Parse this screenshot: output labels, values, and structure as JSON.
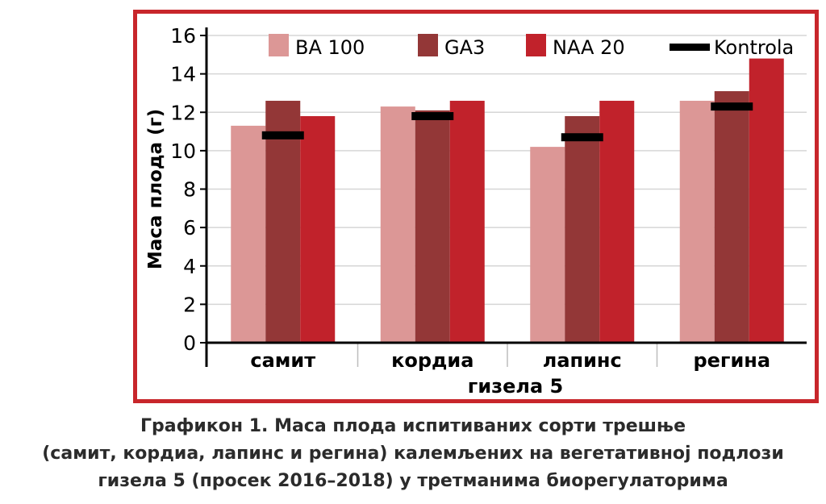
{
  "chart_data": {
    "type": "bar",
    "categories": [
      "самит",
      "кордиа",
      "лапинс",
      "регина"
    ],
    "group_label": "гизела 5",
    "ylabel": "Маса плода (г)",
    "ylim": [
      0,
      16
    ],
    "yticks": [
      0,
      2,
      4,
      6,
      8,
      10,
      12,
      14,
      16
    ],
    "series": [
      {
        "name": "BA 100",
        "color": "#dc9796",
        "values": [
          11.3,
          12.3,
          10.2,
          12.6
        ]
      },
      {
        "name": "GA3",
        "color": "#933737",
        "values": [
          12.6,
          12.1,
          11.8,
          13.1
        ]
      },
      {
        "name": "NAA 20",
        "color": "#c1222b",
        "values": [
          11.8,
          12.6,
          12.6,
          14.8
        ]
      }
    ],
    "control": {
      "name": "Kontrola",
      "color": "#000000",
      "values": [
        10.8,
        11.8,
        10.7,
        12.3
      ]
    },
    "legend_position": "top",
    "grid": true
  },
  "caption": {
    "line1": "Графикон 1. Маса плода испитиваних сорти трешње",
    "line2": "(самит, кордиа, лапинс и регина) калемљених на вегетативној подлози",
    "line3": "гизела 5 (просек 2016–2018) у третманима биорегулаторима"
  }
}
